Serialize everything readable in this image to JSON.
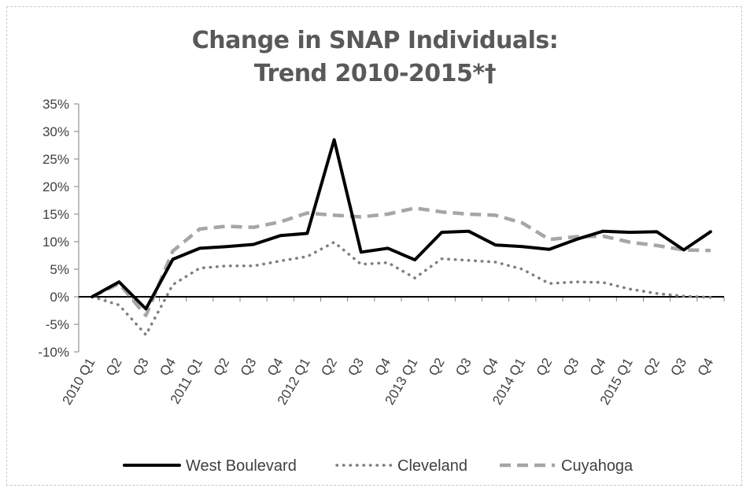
{
  "chart_data": {
    "type": "line",
    "title": "Change in SNAP Individuals:",
    "subtitle": "Trend 2010-2015*†",
    "xlabel": "",
    "ylabel": "",
    "ylim": [
      -10,
      35
    ],
    "yticks": [
      35,
      30,
      25,
      20,
      15,
      10,
      5,
      0,
      -5,
      -10
    ],
    "ytick_labels": [
      "35%",
      "30%",
      "25%",
      "20%",
      "15%",
      "10%",
      "5%",
      "0%",
      "-5%",
      "-10%"
    ],
    "categories": [
      "2010 Q1",
      "Q2",
      "Q3",
      "Q4",
      "2011 Q1",
      "Q2",
      "Q3",
      "Q4",
      "2012 Q1",
      "Q2",
      "Q3",
      "Q4",
      "2013 Q1",
      "Q2",
      "Q3",
      "Q4",
      "2014 Q1",
      "Q2",
      "Q3",
      "Q4",
      "2015 Q1",
      "Q2",
      "Q3",
      "Q4"
    ],
    "series": [
      {
        "name": "West Boulevard",
        "style": "solid",
        "color": "#000000",
        "values": [
          0,
          2.7,
          -2.2,
          6.8,
          8.8,
          9.1,
          9.5,
          11.1,
          11.5,
          28.5,
          8.1,
          8.8,
          6.7,
          11.7,
          11.9,
          9.4,
          9.1,
          8.6,
          10.4,
          11.9,
          11.7,
          11.8,
          8.5,
          11.8
        ]
      },
      {
        "name": "Cleveland",
        "style": "dotted",
        "color": "#7f7f7f",
        "values": [
          0,
          -1.5,
          -6.9,
          2.2,
          5.2,
          5.6,
          5.6,
          6.5,
          7.3,
          9.9,
          5.9,
          6.2,
          3.4,
          6.9,
          6.6,
          6.3,
          5.0,
          2.4,
          2.7,
          2.6,
          1.4,
          0.6,
          0.1,
          -0.1
        ]
      },
      {
        "name": "Cuyahoga",
        "style": "dashed",
        "color": "#a6a6a6",
        "values": [
          0,
          2.4,
          -3.4,
          8.3,
          12.3,
          12.8,
          12.6,
          13.6,
          15.2,
          14.8,
          14.5,
          15.0,
          16.1,
          15.4,
          15.0,
          14.8,
          13.4,
          10.4,
          10.9,
          11.0,
          9.9,
          9.3,
          8.5,
          8.4
        ]
      }
    ],
    "grid": true,
    "legend_position": "bottom"
  }
}
